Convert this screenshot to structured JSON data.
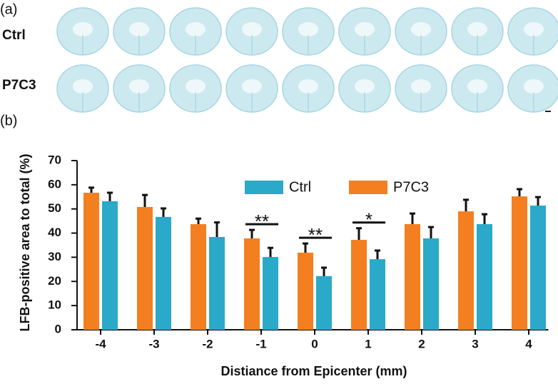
{
  "panel_a": {
    "label": "(a)",
    "rows": [
      "Ctrl",
      "P7C3"
    ]
  },
  "panel_b_label": "(b)",
  "chart_data": {
    "type": "bar",
    "x_label": "Distiance from Epicenter (mm)",
    "y_label": "LFB-positive area to total (%)",
    "categories": [
      "-4",
      "-3",
      "-2",
      "-1",
      "0",
      "1",
      "2",
      "3",
      "4"
    ],
    "series": [
      {
        "name": "P7C3",
        "color": "#f47f20",
        "values": [
          56.7,
          50.8,
          43.7,
          37.8,
          31.9,
          37.2,
          43.7,
          49,
          55.2
        ],
        "errors": [
          2.1,
          5,
          2.3,
          3.5,
          3.8,
          4.8,
          4.4,
          4.8,
          3
        ]
      },
      {
        "name": "Ctrl",
        "color": "#2aa9c9",
        "values": [
          53.2,
          46.7,
          38.4,
          30.1,
          22.2,
          29.2,
          37.8,
          43.7,
          51.4
        ],
        "errors": [
          3.5,
          3.5,
          6,
          3.8,
          3.5,
          3.6,
          4.7,
          4.1,
          3.5
        ]
      }
    ],
    "legend_order": [
      "Ctrl",
      "P7C3"
    ],
    "significance": [
      null,
      null,
      null,
      "**",
      "**",
      "*",
      null,
      null,
      null
    ],
    "ylim": [
      0,
      70
    ],
    "yticks": [
      0,
      10,
      20,
      30,
      40,
      50,
      60,
      70
    ],
    "legend": "upper center",
    "grid": false
  }
}
